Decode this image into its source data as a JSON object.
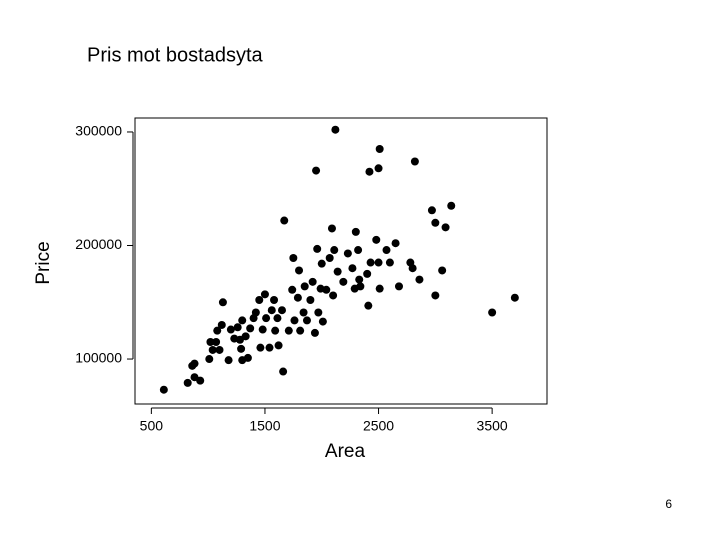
{
  "slide": {
    "title": "Pris mot bostadsyta",
    "page_number": "6"
  },
  "chart_data": {
    "type": "scatter",
    "x_label": "Area",
    "y_label": "Price",
    "color": "#000000",
    "xlim": [
      356,
      3983
    ],
    "ylim": [
      60400,
      312300
    ],
    "xticks": [
      500,
      1500,
      2500,
      3500
    ],
    "yticks": [
      100000,
      200000,
      300000
    ],
    "x": [
      610,
      820,
      880,
      930,
      860,
      880,
      1010,
      1020,
      1040,
      1070,
      1100,
      1080,
      1120,
      1130,
      1180,
      1200,
      1230,
      1260,
      1280,
      1290,
      1300,
      1330,
      1300,
      1350,
      1370,
      1400,
      1420,
      1450,
      1460,
      1480,
      1500,
      1510,
      1540,
      1560,
      1580,
      1590,
      1610,
      1620,
      1650,
      1660,
      1670,
      1710,
      1740,
      1750,
      1760,
      1790,
      1800,
      1810,
      1840,
      1850,
      1870,
      1900,
      1920,
      1940,
      1950,
      1960,
      1970,
      1990,
      2000,
      2010,
      2040,
      2070,
      2090,
      2100,
      2110,
      2120,
      2140,
      2190,
      2230,
      2270,
      2290,
      2300,
      2320,
      2330,
      2340,
      2400,
      2410,
      2420,
      2430,
      2480,
      2500,
      2500,
      2510,
      2510,
      2570,
      2600,
      2650,
      2680,
      2780,
      2800,
      2820,
      2860,
      2970,
      3000,
      3000,
      3060,
      3090,
      3140,
      3500,
      3700
    ],
    "values": [
      73000,
      79000,
      84000,
      81000,
      94000,
      96000,
      100000,
      115000,
      108000,
      115000,
      108000,
      125000,
      130000,
      150000,
      99000,
      126000,
      118000,
      128000,
      117000,
      109000,
      99000,
      120000,
      134000,
      101000,
      127000,
      136000,
      141000,
      152000,
      110000,
      126000,
      157000,
      136000,
      110000,
      143000,
      152000,
      125000,
      136000,
      112000,
      143000,
      89000,
      222000,
      125000,
      161000,
      189000,
      134000,
      154000,
      178000,
      125000,
      141000,
      164000,
      134000,
      152000,
      168000,
      123000,
      266000,
      197000,
      141000,
      162000,
      184000,
      133000,
      161000,
      189000,
      215000,
      156000,
      196000,
      302000,
      177000,
      168000,
      193000,
      180000,
      162000,
      212000,
      196000,
      170000,
      164000,
      175000,
      147000,
      265000,
      185000,
      205000,
      185000,
      268000,
      285000,
      162000,
      196000,
      185000,
      202000,
      164000,
      185000,
      180000,
      274000,
      170000,
      231000,
      220000,
      156000,
      178000,
      216000,
      235000,
      141000,
      154000
    ]
  }
}
